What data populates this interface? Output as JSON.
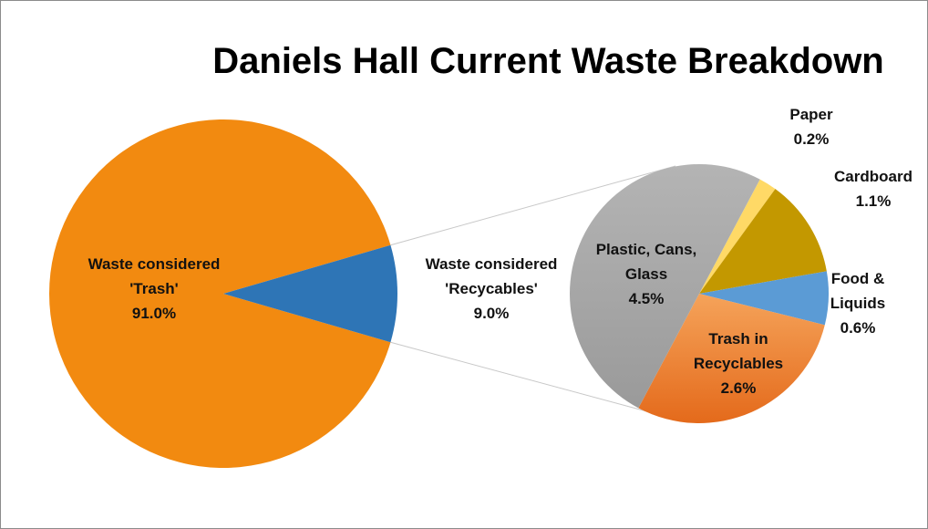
{
  "chart_data": {
    "type": "pie",
    "subtype": "pie-of-pie",
    "title": "Daniels Hall Current Waste Breakdown",
    "main_pie": [
      {
        "name": "Waste  considered 'Trash'",
        "lines": [
          "Waste  considered",
          "'Trash'"
        ],
        "value": 91.0,
        "label": "91.0%",
        "color": "#f28a10"
      },
      {
        "name": "Waste considered 'Recycables'",
        "lines": [
          "Waste considered",
          "'Recycables'"
        ],
        "value": 9.0,
        "label": "9.0%",
        "color": "#2e75b6"
      }
    ],
    "breakdown_of": "Waste considered 'Recycables'",
    "secondary_pie": [
      {
        "name": "Paper",
        "lines": [
          "Paper"
        ],
        "value": 0.2,
        "label": "0.2%",
        "color": "#ffd966"
      },
      {
        "name": "Cardboard",
        "lines": [
          "Cardboard"
        ],
        "value": 1.1,
        "label": "1.1%",
        "color": "#c39800"
      },
      {
        "name": "Food & Liquids",
        "lines": [
          "Food &",
          "Liquids"
        ],
        "value": 0.6,
        "label": "0.6%",
        "color": "#5b9bd5"
      },
      {
        "name": "Trash in Recyclables",
        "lines": [
          "Trash in",
          "Recyclables"
        ],
        "value": 2.6,
        "label": "2.6%",
        "color": "#ed7d31"
      },
      {
        "name": "Plastic, Cans, Glass",
        "lines": [
          "Plastic, Cans,",
          "Glass"
        ],
        "value": 4.5,
        "label": "4.5%",
        "color": "#a5a5a5"
      }
    ],
    "legend": "none",
    "colors": {
      "connector": "#c8c8c8",
      "text": "#111111"
    }
  }
}
